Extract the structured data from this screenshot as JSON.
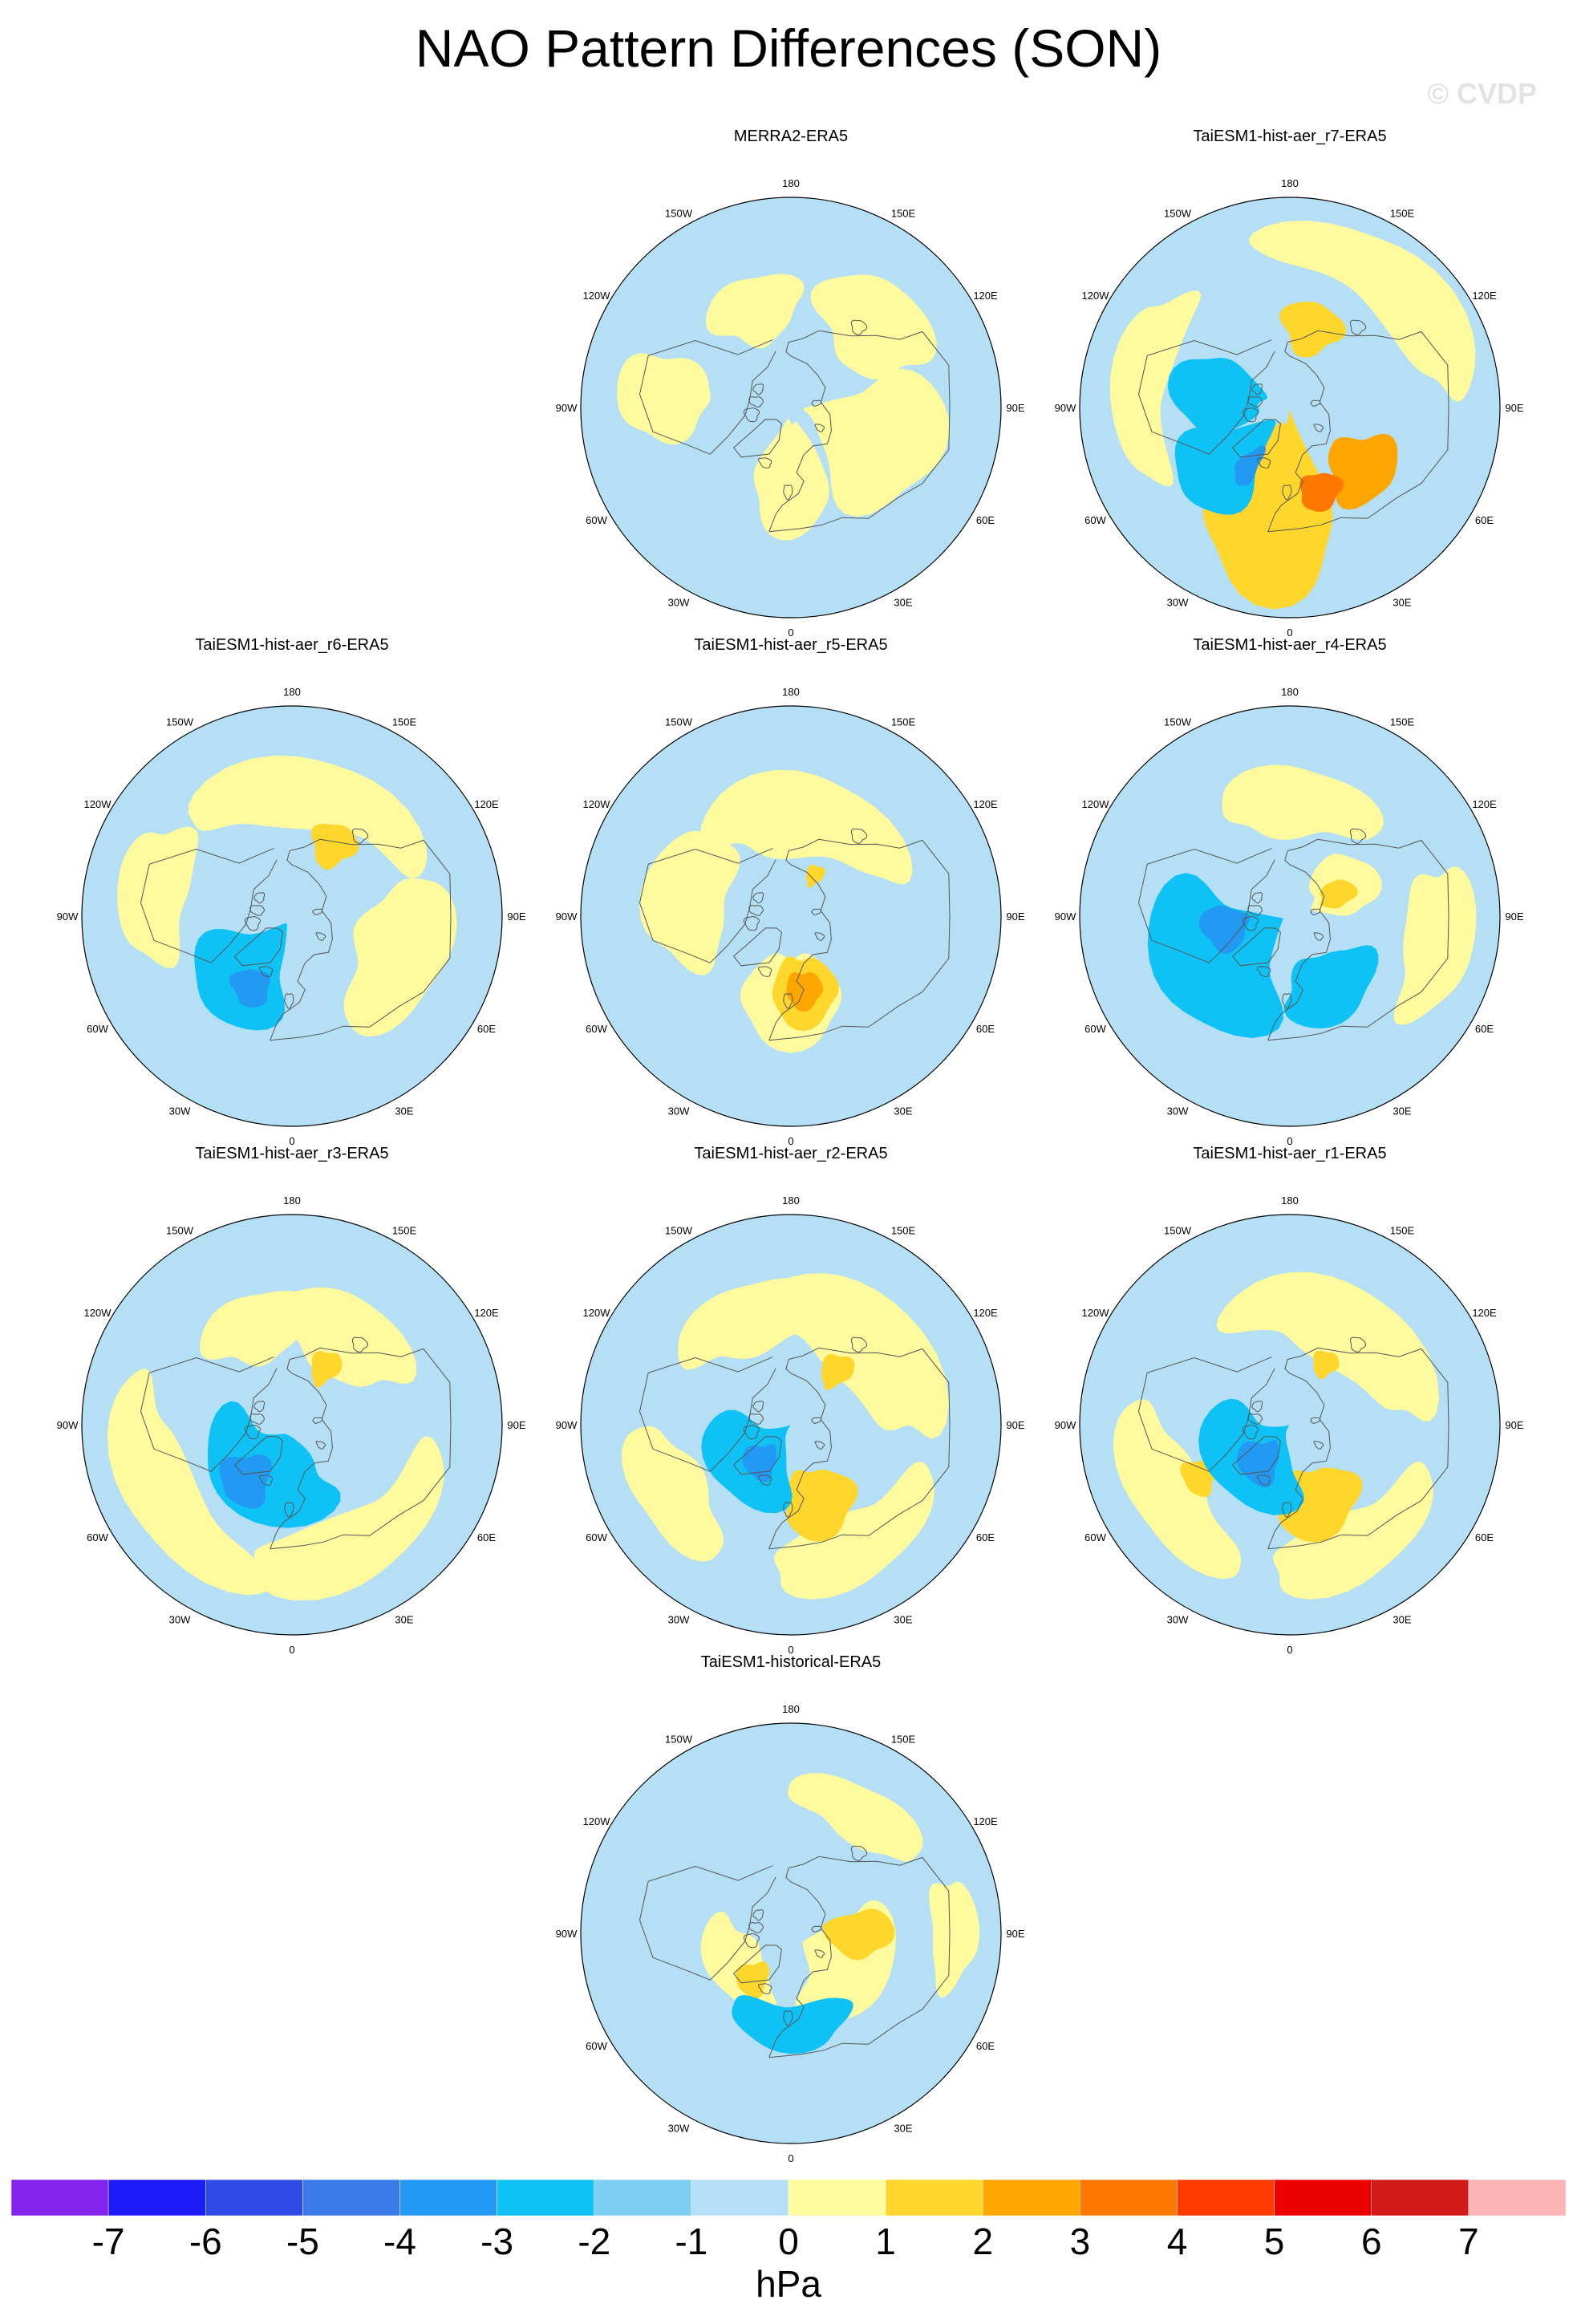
{
  "title": "NAO Pattern Differences (SON)",
  "watermark": "© CVDP",
  "longitude_labels": [
    "180",
    "150E",
    "120E",
    "90E",
    "60E",
    "30E",
    "0",
    "30W",
    "60W",
    "90W",
    "120W",
    "150W"
  ],
  "panels": [
    {
      "title": "MERRA2-ERA5",
      "features": [
        {
          "lon": 0,
          "lat": 62,
          "rlon": 30,
          "rlat": 25,
          "value": 0.5
        },
        {
          "lon": 70,
          "lat": 52,
          "rlon": 40,
          "rlat": 30,
          "value": 0.5
        },
        {
          "lon": 135,
          "lat": 40,
          "rlon": 30,
          "rlat": 20,
          "value": 0.5
        },
        {
          "lon": -95,
          "lat": 36,
          "rlon": 20,
          "rlat": 20,
          "value": 0.5
        },
        {
          "lon": -160,
          "lat": 45,
          "rlon": 25,
          "rlat": 15,
          "value": 0.5
        }
      ]
    },
    {
      "title": "TaiESM1-hist-aer_r7-ERA5",
      "features": [
        {
          "lon": -10,
          "lat": 50,
          "rlon": 35,
          "rlat": 40,
          "value": 1.5
        },
        {
          "lon": 50,
          "lat": 50,
          "rlon": 22,
          "rlat": 15,
          "value": 2.5
        },
        {
          "lon": 20,
          "lat": 52,
          "rlon": 14,
          "rlat": 8,
          "value": 3.5
        },
        {
          "lon": -50,
          "lat": 55,
          "rlon": 25,
          "rlat": 25,
          "value": -2.5
        },
        {
          "lon": -100,
          "lat": 60,
          "rlon": 30,
          "rlat": 20,
          "value": -2.5
        },
        {
          "lon": -35,
          "lat": 60,
          "rlon": 8,
          "rlat": 10,
          "value": -3.5
        },
        {
          "lon": 165,
          "lat": 55,
          "rlon": 20,
          "rlat": 12,
          "value": 1.5
        },
        {
          "lon": -100,
          "lat": 25,
          "rlon": 40,
          "rlat": 12,
          "value": 0.5
        },
        {
          "lon": 140,
          "lat": 20,
          "rlon": 50,
          "rlat": 15,
          "value": 0.5
        }
      ]
    },
    {
      "title": "TaiESM1-hist-aer_r6-ERA5",
      "features": [
        {
          "lon": 170,
          "lat": 35,
          "rlon": 60,
          "rlat": 15,
          "value": 0.5
        },
        {
          "lon": 150,
          "lat": 55,
          "rlon": 15,
          "rlat": 10,
          "value": 1.5
        },
        {
          "lon": 70,
          "lat": 40,
          "rlon": 40,
          "rlat": 20,
          "value": 0.5
        },
        {
          "lon": -40,
          "lat": 60,
          "rlon": 35,
          "rlat": 25,
          "value": -2.5
        },
        {
          "lon": -30,
          "lat": 55,
          "rlon": 14,
          "rlat": 8,
          "value": -3.5
        },
        {
          "lon": -100,
          "lat": 30,
          "rlon": 30,
          "rlat": 15,
          "value": 0.5
        }
      ]
    },
    {
      "title": "TaiESM1-hist-aer_r5-ERA5",
      "features": [
        {
          "lon": 0,
          "lat": 55,
          "rlon": 35,
          "rlat": 20,
          "value": 0.5
        },
        {
          "lon": 10,
          "lat": 58,
          "rlon": 25,
          "rlat": 15,
          "value": 1.5
        },
        {
          "lon": 10,
          "lat": 58,
          "rlon": 14,
          "rlat": 8,
          "value": 2.5
        },
        {
          "lon": 170,
          "lat": 45,
          "rlon": 60,
          "rlat": 18,
          "value": 0.5
        },
        {
          "lon": -100,
          "lat": 45,
          "rlon": 40,
          "rlat": 18,
          "value": 0.5
        },
        {
          "lon": 150,
          "lat": 70,
          "rlon": 10,
          "rlat": 5,
          "value": 1.5
        }
      ]
    },
    {
      "title": "TaiESM1-hist-aer_r4-ERA5",
      "features": [
        {
          "lon": -60,
          "lat": 55,
          "rlon": 50,
          "rlat": 30,
          "value": -2.5
        },
        {
          "lon": 30,
          "lat": 55,
          "rlon": 35,
          "rlat": 15,
          "value": -2.5
        },
        {
          "lon": -80,
          "lat": 62,
          "rlon": 20,
          "rlat": 10,
          "value": -3.5
        },
        {
          "lon": 120,
          "lat": 65,
          "rlon": 30,
          "rlat": 15,
          "value": 0.5
        },
        {
          "lon": 115,
          "lat": 68,
          "rlon": 15,
          "rlat": 8,
          "value": 1.5
        },
        {
          "lon": 175,
          "lat": 40,
          "rlon": 40,
          "rlat": 15,
          "value": 0.5
        },
        {
          "lon": 80,
          "lat": 25,
          "rlon": 30,
          "rlat": 15,
          "value": 0.5
        }
      ]
    },
    {
      "title": "TaiESM1-hist-aer_r3-ERA5",
      "features": [
        {
          "lon": -30,
          "lat": 65,
          "rlon": 70,
          "rlat": 20,
          "value": -2.5
        },
        {
          "lon": -40,
          "lat": 60,
          "rlon": 20,
          "rlat": 12,
          "value": -3.5
        },
        {
          "lon": 150,
          "lat": 62,
          "rlon": 12,
          "rlat": 8,
          "value": 1.5
        },
        {
          "lon": 150,
          "lat": 45,
          "rlon": 40,
          "rlat": 18,
          "value": 0.5
        },
        {
          "lon": -60,
          "lat": 25,
          "rlon": 50,
          "rlat": 15,
          "value": 0.5
        },
        {
          "lon": 30,
          "lat": 30,
          "rlon": 50,
          "rlat": 15,
          "value": 0.5
        },
        {
          "lon": -160,
          "lat": 45,
          "rlon": 30,
          "rlat": 15,
          "value": 0.5
        }
      ]
    },
    {
      "title": "TaiESM1-hist-aer_r2-ERA5",
      "features": [
        {
          "lon": -50,
          "lat": 68,
          "rlon": 50,
          "rlat": 20,
          "value": -2.5
        },
        {
          "lon": -40,
          "lat": 70,
          "rlon": 20,
          "rlat": 8,
          "value": -3.5
        },
        {
          "lon": 20,
          "lat": 55,
          "rlon": 25,
          "rlat": 15,
          "value": 1.5
        },
        {
          "lon": 140,
          "lat": 60,
          "rlon": 12,
          "rlat": 8,
          "value": 1.5
        },
        {
          "lon": 140,
          "lat": 40,
          "rlon": 60,
          "rlat": 20,
          "value": 0.5
        },
        {
          "lon": -60,
          "lat": 30,
          "rlon": 30,
          "rlat": 15,
          "value": 0.5
        },
        {
          "lon": 30,
          "lat": 30,
          "rlon": 40,
          "rlat": 15,
          "value": 0.5
        },
        {
          "lon": -160,
          "lat": 40,
          "rlon": 40,
          "rlat": 15,
          "value": 0.5
        }
      ]
    },
    {
      "title": "TaiESM1-hist-aer_r1-ERA5",
      "features": [
        {
          "lon": -50,
          "lat": 68,
          "rlon": 60,
          "rlat": 20,
          "value": -2.5
        },
        {
          "lon": -40,
          "lat": 70,
          "rlon": 25,
          "rlat": 10,
          "value": -3.5
        },
        {
          "lon": 20,
          "lat": 55,
          "rlon": 30,
          "rlat": 15,
          "value": 1.5
        },
        {
          "lon": -60,
          "lat": 45,
          "rlon": 10,
          "rlat": 7,
          "value": 1.5
        },
        {
          "lon": 150,
          "lat": 60,
          "rlon": 10,
          "rlat": 6,
          "value": 1.5
        },
        {
          "lon": 150,
          "lat": 40,
          "rlon": 60,
          "rlat": 18,
          "value": 0.5
        },
        {
          "lon": -60,
          "lat": 28,
          "rlon": 40,
          "rlat": 15,
          "value": 0.5
        },
        {
          "lon": 30,
          "lat": 30,
          "rlon": 40,
          "rlat": 15,
          "value": 0.5
        }
      ]
    },
    {
      "title": "TaiESM1-historical-ERA5",
      "features": [
        {
          "lon": 60,
          "lat": 62,
          "rlon": 50,
          "rlat": 20,
          "value": 0.5
        },
        {
          "lon": 90,
          "lat": 62,
          "rlon": 20,
          "rlat": 15,
          "value": 1.5
        },
        {
          "lon": -60,
          "lat": 62,
          "rlon": 45,
          "rlat": 12,
          "value": 0.5
        },
        {
          "lon": -40,
          "lat": 65,
          "rlon": 15,
          "rlat": 8,
          "value": 1.5
        },
        {
          "lon": 0,
          "lat": 50,
          "rlon": 40,
          "rlat": 10,
          "value": -2.5
        },
        {
          "lon": 150,
          "lat": 30,
          "rlon": 30,
          "rlat": 12,
          "value": 0.5
        },
        {
          "lon": 90,
          "lat": 20,
          "rlon": 20,
          "rlat": 10,
          "value": 0.5
        }
      ]
    }
  ],
  "colorbar": {
    "units": "hPa",
    "tick_labels": [
      "-7",
      "-6",
      "-5",
      "-4",
      "-3",
      "-2",
      "-1",
      "0",
      "1",
      "2",
      "3",
      "4",
      "5",
      "6",
      "7"
    ],
    "colors": [
      "#8224ee",
      "#1f1af8",
      "#2f4ce6",
      "#3a7ae8",
      "#2299f2",
      "#0fc2f5",
      "#7dcdf2",
      "#b4dff4",
      "#fefa9d",
      "#fed62c",
      "#fea500",
      "#fe7800",
      "#fe3a00",
      "#ee0000",
      "#d11a1a",
      "#fcb3b3"
    ]
  }
}
